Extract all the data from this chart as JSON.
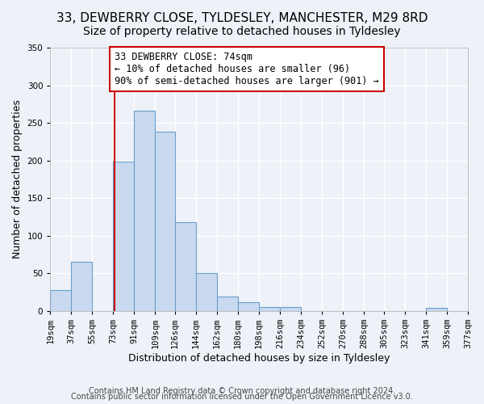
{
  "title": "33, DEWBERRY CLOSE, TYLDESLEY, MANCHESTER, M29 8RD",
  "subtitle": "Size of property relative to detached houses in Tyldesley",
  "xlabel": "Distribution of detached houses by size in Tyldesley",
  "ylabel": "Number of detached properties",
  "bin_edges": [
    19,
    37,
    55,
    73,
    91,
    109,
    126,
    144,
    162,
    180,
    198,
    216,
    234,
    252,
    270,
    288,
    305,
    323,
    341,
    359,
    377
  ],
  "bin_labels": [
    "19sqm",
    "37sqm",
    "55sqm",
    "73sqm",
    "91sqm",
    "109sqm",
    "126sqm",
    "144sqm",
    "162sqm",
    "180sqm",
    "198sqm",
    "216sqm",
    "234sqm",
    "252sqm",
    "270sqm",
    "288sqm",
    "305sqm",
    "323sqm",
    "341sqm",
    "359sqm",
    "377sqm"
  ],
  "counts": [
    28,
    65,
    0,
    199,
    266,
    238,
    118,
    50,
    19,
    12,
    5,
    5,
    0,
    0,
    0,
    0,
    0,
    0,
    4,
    0
  ],
  "bar_color": "#c9d9ef",
  "bar_edge_color": "#6a9fcb",
  "bar_edge_width": 0.8,
  "vline_x": 74,
  "vline_color": "#cc0000",
  "annotation_text": "33 DEWBERRY CLOSE: 74sqm\n← 10% of detached houses are smaller (96)\n90% of semi-detached houses are larger (901) →",
  "annotation_box_color": "white",
  "annotation_box_edgecolor": "#cc0000",
  "ylim": [
    0,
    350
  ],
  "yticks": [
    0,
    50,
    100,
    150,
    200,
    250,
    300,
    350
  ],
  "footnote1": "Contains HM Land Registry data © Crown copyright and database right 2024.",
  "footnote2": "Contains public sector information licensed under the Open Government Licence v3.0.",
  "background_color": "#eef2f8",
  "plot_background": "#eef2f8",
  "grid_color": "white",
  "title_fontsize": 11,
  "subtitle_fontsize": 10,
  "axis_label_fontsize": 9,
  "tick_fontsize": 7.5,
  "annotation_fontsize": 8.5,
  "footnote_fontsize": 7
}
